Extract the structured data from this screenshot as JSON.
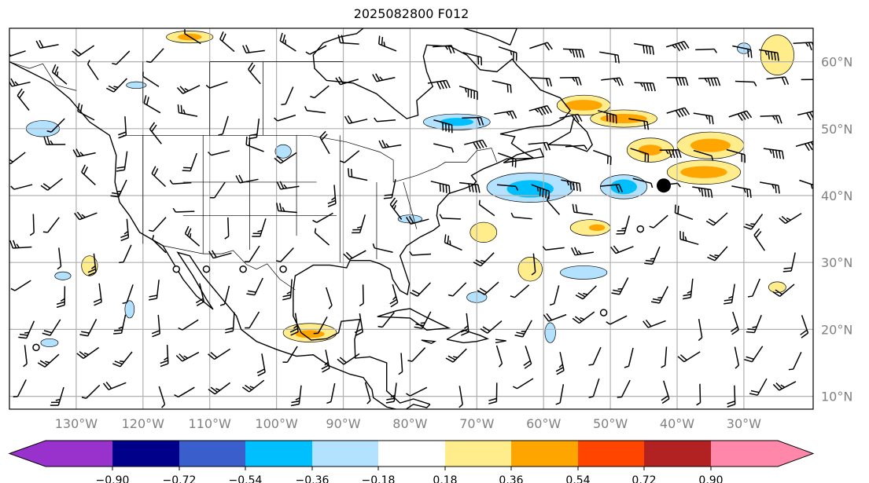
{
  "title": "2025082800 F012",
  "map": {
    "lon_range": [
      -140,
      -19.6
    ],
    "lat_range": [
      8.1,
      65
    ],
    "lon_ticks": [
      {
        "value": -130,
        "label": "130°W"
      },
      {
        "value": -120,
        "label": "120°W"
      },
      {
        "value": -110,
        "label": "110°W"
      },
      {
        "value": -100,
        "label": "100°W"
      },
      {
        "value": -90,
        "label": "90°W"
      },
      {
        "value": -80,
        "label": "80°W"
      },
      {
        "value": -70,
        "label": "70°W"
      },
      {
        "value": -60,
        "label": "60°W"
      },
      {
        "value": -50,
        "label": "50°W"
      },
      {
        "value": -40,
        "label": "40°W"
      },
      {
        "value": -30,
        "label": "30°W"
      }
    ],
    "lat_ticks": [
      {
        "value": 60,
        "label": "60°N"
      },
      {
        "value": 50,
        "label": "50°N"
      },
      {
        "value": 40,
        "label": "40°N"
      },
      {
        "value": 30,
        "label": "30°N"
      },
      {
        "value": 20,
        "label": "20°N"
      },
      {
        "value": 10,
        "label": "10°N"
      }
    ],
    "anomaly_regions": [
      {
        "lon": -62,
        "lat": 41.2,
        "rlon": 6.5,
        "rlat": 2.2,
        "level": -0.18
      },
      {
        "lon": -62,
        "lat": 41,
        "rlon": 3.5,
        "rlat": 1.3,
        "level": -0.36
      },
      {
        "lon": -48,
        "lat": 41.3,
        "rlon": 3.5,
        "rlat": 1.8,
        "level": -0.18
      },
      {
        "lon": -48,
        "lat": 41.3,
        "rlon": 2,
        "rlat": 1.1,
        "level": -0.36
      },
      {
        "lon": -73,
        "lat": 51,
        "rlon": 5,
        "rlat": 1.2,
        "level": -0.18
      },
      {
        "lon": -73,
        "lat": 51,
        "rlon": 2.5,
        "rlat": 0.6,
        "level": -0.36
      },
      {
        "lon": -54,
        "lat": 53.5,
        "rlon": 4,
        "rlat": 1.5,
        "level": 0.18
      },
      {
        "lon": -54,
        "lat": 53.5,
        "rlon": 2.8,
        "rlat": 0.8,
        "level": 0.36
      },
      {
        "lon": -48,
        "lat": 51.5,
        "rlon": 5,
        "rlat": 1.3,
        "level": 0.18
      },
      {
        "lon": -48,
        "lat": 51.5,
        "rlon": 3.5,
        "rlat": 0.7,
        "level": 0.36
      },
      {
        "lon": -44,
        "lat": 46.8,
        "rlon": 3.5,
        "rlat": 1.8,
        "level": 0.18
      },
      {
        "lon": -44,
        "lat": 46.8,
        "rlon": 1.8,
        "rlat": 0.8,
        "level": 0.36
      },
      {
        "lon": -35,
        "lat": 47.5,
        "rlon": 5,
        "rlat": 2,
        "level": 0.18
      },
      {
        "lon": -35,
        "lat": 47.5,
        "rlon": 3,
        "rlat": 1,
        "level": 0.36
      },
      {
        "lon": -36,
        "lat": 43.5,
        "rlon": 5.5,
        "rlat": 1.8,
        "level": 0.18
      },
      {
        "lon": -36,
        "lat": 43.5,
        "rlon": 3.5,
        "rlat": 0.9,
        "level": 0.36
      },
      {
        "lon": -25,
        "lat": 61,
        "rlon": 2.5,
        "rlat": 3,
        "level": 0.18
      },
      {
        "lon": -113,
        "lat": 63.7,
        "rlon": 3.5,
        "rlat": 0.9,
        "level": 0.18
      },
      {
        "lon": -113,
        "lat": 63.7,
        "rlon": 1.8,
        "rlat": 0.5,
        "level": 0.36
      },
      {
        "lon": -69,
        "lat": 34.5,
        "rlon": 2,
        "rlat": 1.5,
        "level": 0.18
      },
      {
        "lon": -53,
        "lat": 35.2,
        "rlon": 3,
        "rlat": 1.2,
        "level": 0.18
      },
      {
        "lon": -52,
        "lat": 35.2,
        "rlon": 1.2,
        "rlat": 0.5,
        "level": 0.36
      },
      {
        "lon": -62,
        "lat": 29,
        "rlon": 1.8,
        "rlat": 1.8,
        "level": 0.18
      },
      {
        "lon": -95,
        "lat": 19.5,
        "rlon": 4,
        "rlat": 1.4,
        "level": 0.18
      },
      {
        "lon": -95,
        "lat": 19.3,
        "rlon": 2.2,
        "rlat": 0.6,
        "level": 0.36
      },
      {
        "lon": -128,
        "lat": 29.5,
        "rlon": 1.2,
        "rlat": 1.5,
        "level": 0.18
      },
      {
        "lon": -54,
        "lat": 28.5,
        "rlon": 3.5,
        "rlat": 1,
        "level": -0.18
      },
      {
        "lon": -70,
        "lat": 24.8,
        "rlon": 1.5,
        "rlat": 0.8,
        "level": -0.18
      },
      {
        "lon": -59,
        "lat": 19.5,
        "rlon": 0.8,
        "rlat": 1.5,
        "level": -0.18
      },
      {
        "lon": -121,
        "lat": 56.5,
        "rlon": 1.5,
        "rlat": 0.5,
        "level": -0.18
      },
      {
        "lon": -135,
        "lat": 50,
        "rlon": 2.5,
        "rlat": 1.2,
        "level": -0.18
      },
      {
        "lon": -99,
        "lat": 46.6,
        "rlon": 1.2,
        "rlat": 1,
        "level": -0.18
      },
      {
        "lon": -80,
        "lat": 36.5,
        "rlon": 1.8,
        "rlat": 0.6,
        "level": -0.18
      },
      {
        "lon": -132,
        "lat": 28,
        "rlon": 1.2,
        "rlat": 0.6,
        "level": -0.18
      },
      {
        "lon": -30,
        "lat": 62,
        "rlon": 1,
        "rlat": 0.8,
        "level": -0.18
      },
      {
        "lon": -134,
        "lat": 18,
        "rlon": 1.3,
        "rlat": 0.6,
        "level": -0.18
      },
      {
        "lon": -122,
        "lat": 23,
        "rlon": 0.7,
        "rlat": 1.3,
        "level": -0.18
      },
      {
        "lon": -25,
        "lat": 26.3,
        "rlon": 1.3,
        "rlat": 0.8,
        "level": 0.18
      }
    ],
    "markers": [
      {
        "lon": -42,
        "lat": 41.5,
        "type": "filled-large"
      },
      {
        "lon": -115,
        "lat": 29,
        "type": "open"
      },
      {
        "lon": -110.5,
        "lat": 29,
        "type": "open"
      },
      {
        "lon": -105,
        "lat": 29,
        "type": "open"
      },
      {
        "lon": -99,
        "lat": 29,
        "type": "open"
      },
      {
        "lon": -136,
        "lat": 17.3,
        "type": "open"
      },
      {
        "lon": -51,
        "lat": 22.5,
        "type": "open"
      },
      {
        "lon": -45.5,
        "lat": 35,
        "type": "open"
      }
    ]
  },
  "colorbar": {
    "colors": [
      "#9932cc",
      "#00008b",
      "#3a5fcd",
      "#00bfff",
      "#b2e2ff",
      "#ffffff",
      "#ffec8b",
      "#ffa500",
      "#ff4500",
      "#b22222",
      "#ff88aa"
    ],
    "ticks": [
      "−0.90",
      "−0.72",
      "−0.54",
      "−0.36",
      "−0.18",
      "0.18",
      "0.36",
      "0.54",
      "0.72",
      "0.90"
    ]
  }
}
